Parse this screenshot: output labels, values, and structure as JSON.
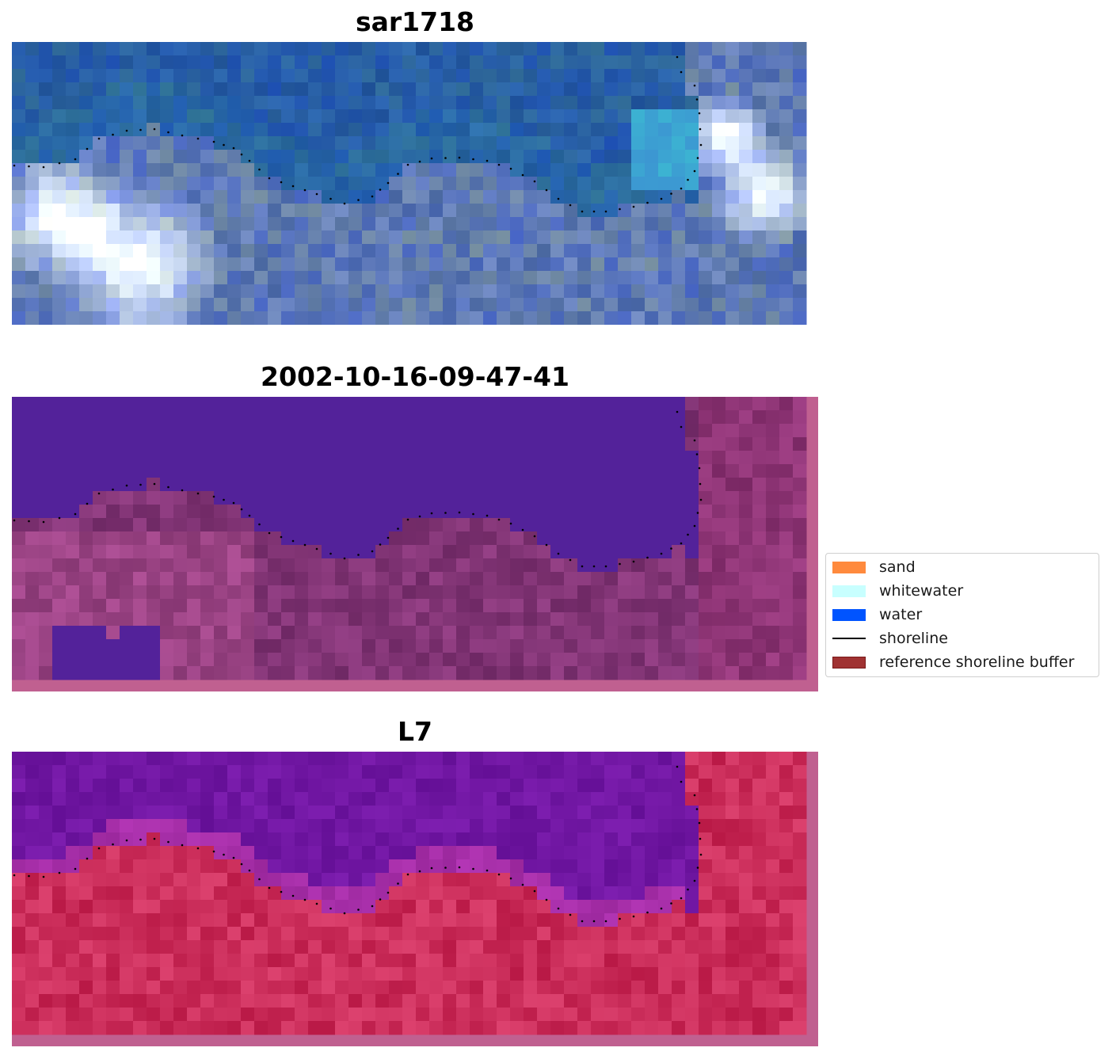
{
  "panels": [
    {
      "title": "sar1718",
      "kind": "rgb"
    },
    {
      "title": "2002-10-16-09-47-41",
      "kind": "classified"
    },
    {
      "title": "L7",
      "kind": "index"
    }
  ],
  "legend": {
    "items": [
      {
        "label": "sand",
        "type": "patch",
        "color": "#ff8a3d"
      },
      {
        "label": "whitewater",
        "type": "patch",
        "color": "#c8ffff"
      },
      {
        "label": "water",
        "type": "patch",
        "color": "#0054ff"
      },
      {
        "label": "shoreline",
        "type": "line",
        "color": "#000000"
      },
      {
        "label": "reference shoreline buffer",
        "type": "patch",
        "color": "#a03232"
      }
    ]
  },
  "colors": {
    "classified_water": "#53229a",
    "buffer_border": "#c06090",
    "index_water": "#6a1a9a",
    "index_land": "#c0204a"
  }
}
